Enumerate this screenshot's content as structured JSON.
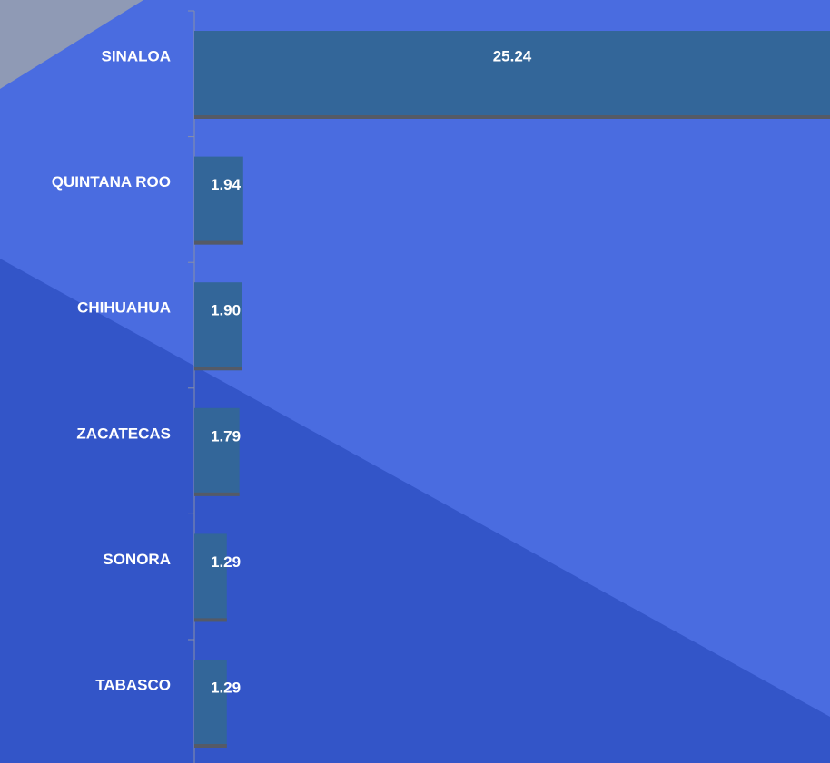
{
  "chart_data": {
    "type": "bar",
    "orientation": "horizontal",
    "categories": [
      "SINALOA",
      "QUINTANA ROO",
      "CHIHUAHUA",
      "ZACATECAS",
      "SONORA",
      "TABASCO"
    ],
    "values": [
      25.24,
      1.94,
      1.9,
      1.79,
      1.29,
      1.29
    ],
    "value_labels": [
      "25.24",
      "1.94",
      "1.90",
      "1.79",
      "1.29",
      "1.29"
    ],
    "color": "#336699",
    "xlim": [
      0,
      25.24
    ]
  }
}
